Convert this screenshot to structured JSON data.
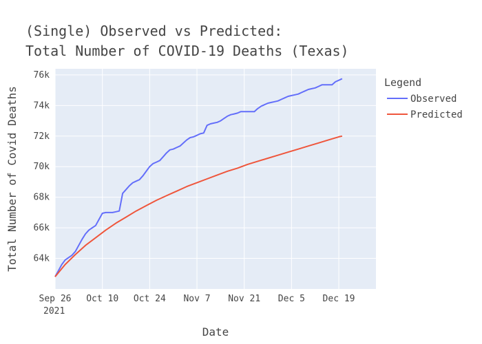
{
  "chart_data": {
    "type": "line",
    "title_lines": [
      "(Single) Observed vs Predicted:",
      "Total Number of COVID-19 Deaths (Texas)"
    ],
    "xlabel": "Date",
    "ylabel": "Total Number of Covid Deaths",
    "x_ticks": [
      {
        "date": "2021-09-26",
        "label": "Sep 26",
        "sublabel": "2021"
      },
      {
        "date": "2021-10-10",
        "label": "Oct 10",
        "sublabel": ""
      },
      {
        "date": "2021-10-24",
        "label": "Oct 24",
        "sublabel": ""
      },
      {
        "date": "2021-11-07",
        "label": "Nov 7",
        "sublabel": ""
      },
      {
        "date": "2021-11-21",
        "label": "Nov 21",
        "sublabel": ""
      },
      {
        "date": "2021-12-05",
        "label": "Dec 5",
        "sublabel": ""
      },
      {
        "date": "2021-12-19",
        "label": "Dec 19",
        "sublabel": ""
      }
    ],
    "y_ticks": [
      {
        "value": 64000,
        "label": "64k"
      },
      {
        "value": 66000,
        "label": "66k"
      },
      {
        "value": 68000,
        "label": "68k"
      },
      {
        "value": 70000,
        "label": "70k"
      },
      {
        "value": 72000,
        "label": "72k"
      },
      {
        "value": 74000,
        "label": "74k"
      },
      {
        "value": 76000,
        "label": "76k"
      }
    ],
    "xlim": [
      "2021-09-26",
      "2021-12-30"
    ],
    "ylim": [
      62000,
      76400
    ],
    "grid": true,
    "legend": {
      "title": "Legend",
      "placement": "right"
    },
    "series": [
      {
        "name": "Observed",
        "color": "#636efa",
        "points": [
          [
            "2021-09-26",
            62800
          ],
          [
            "2021-09-27",
            63200
          ],
          [
            "2021-09-28",
            63600
          ],
          [
            "2021-09-29",
            63900
          ],
          [
            "2021-09-30",
            64050
          ],
          [
            "2021-10-01",
            64200
          ],
          [
            "2021-10-02",
            64450
          ],
          [
            "2021-10-03",
            64850
          ],
          [
            "2021-10-04",
            65250
          ],
          [
            "2021-10-05",
            65600
          ],
          [
            "2021-10-06",
            65850
          ],
          [
            "2021-10-07",
            66000
          ],
          [
            "2021-10-08",
            66150
          ],
          [
            "2021-10-09",
            66550
          ],
          [
            "2021-10-10",
            66950
          ],
          [
            "2021-10-11",
            67000
          ],
          [
            "2021-10-12",
            67000
          ],
          [
            "2021-10-13",
            67000
          ],
          [
            "2021-10-14",
            67050
          ],
          [
            "2021-10-15",
            67100
          ],
          [
            "2021-10-16",
            68250
          ],
          [
            "2021-10-17",
            68500
          ],
          [
            "2021-10-18",
            68750
          ],
          [
            "2021-10-19",
            68950
          ],
          [
            "2021-10-20",
            69050
          ],
          [
            "2021-10-21",
            69150
          ],
          [
            "2021-10-22",
            69400
          ],
          [
            "2021-10-23",
            69700
          ],
          [
            "2021-10-24",
            70000
          ],
          [
            "2021-10-25",
            70200
          ],
          [
            "2021-10-26",
            70300
          ],
          [
            "2021-10-27",
            70400
          ],
          [
            "2021-10-28",
            70650
          ],
          [
            "2021-10-29",
            70900
          ],
          [
            "2021-10-30",
            71100
          ],
          [
            "2021-10-31",
            71150
          ],
          [
            "2021-11-01",
            71250
          ],
          [
            "2021-11-02",
            71350
          ],
          [
            "2021-11-03",
            71550
          ],
          [
            "2021-11-04",
            71750
          ],
          [
            "2021-11-05",
            71900
          ],
          [
            "2021-11-06",
            71950
          ],
          [
            "2021-11-07",
            72050
          ],
          [
            "2021-11-08",
            72150
          ],
          [
            "2021-11-09",
            72200
          ],
          [
            "2021-11-10",
            72700
          ],
          [
            "2021-11-11",
            72800
          ],
          [
            "2021-11-12",
            72850
          ],
          [
            "2021-11-13",
            72900
          ],
          [
            "2021-11-14",
            73000
          ],
          [
            "2021-11-15",
            73150
          ],
          [
            "2021-11-16",
            73300
          ],
          [
            "2021-11-17",
            73400
          ],
          [
            "2021-11-18",
            73450
          ],
          [
            "2021-11-19",
            73500
          ],
          [
            "2021-11-20",
            73600
          ],
          [
            "2021-11-21",
            73600
          ],
          [
            "2021-11-22",
            73600
          ],
          [
            "2021-11-23",
            73600
          ],
          [
            "2021-11-24",
            73600
          ],
          [
            "2021-11-25",
            73800
          ],
          [
            "2021-11-26",
            73950
          ],
          [
            "2021-11-27",
            74050
          ],
          [
            "2021-11-28",
            74150
          ],
          [
            "2021-11-29",
            74200
          ],
          [
            "2021-11-30",
            74250
          ],
          [
            "2021-12-01",
            74300
          ],
          [
            "2021-12-02",
            74400
          ],
          [
            "2021-12-03",
            74500
          ],
          [
            "2021-12-04",
            74600
          ],
          [
            "2021-12-05",
            74650
          ],
          [
            "2021-12-06",
            74700
          ],
          [
            "2021-12-07",
            74750
          ],
          [
            "2021-12-08",
            74850
          ],
          [
            "2021-12-09",
            74950
          ],
          [
            "2021-12-10",
            75050
          ],
          [
            "2021-12-11",
            75100
          ],
          [
            "2021-12-12",
            75150
          ],
          [
            "2021-12-13",
            75250
          ],
          [
            "2021-12-14",
            75350
          ],
          [
            "2021-12-15",
            75350
          ],
          [
            "2021-12-16",
            75350
          ],
          [
            "2021-12-17",
            75350
          ],
          [
            "2021-12-18",
            75550
          ],
          [
            "2021-12-19",
            75650
          ],
          [
            "2021-12-20",
            75750
          ]
        ]
      },
      {
        "name": "Predicted",
        "color": "#ef553b",
        "points": [
          [
            "2021-09-26",
            62800
          ],
          [
            "2021-09-29",
            63600
          ],
          [
            "2021-10-02",
            64250
          ],
          [
            "2021-10-05",
            64850
          ],
          [
            "2021-10-08",
            65350
          ],
          [
            "2021-10-11",
            65850
          ],
          [
            "2021-10-14",
            66300
          ],
          [
            "2021-10-17",
            66700
          ],
          [
            "2021-10-20",
            67100
          ],
          [
            "2021-10-23",
            67450
          ],
          [
            "2021-10-26",
            67800
          ],
          [
            "2021-10-29",
            68100
          ],
          [
            "2021-11-01",
            68400
          ],
          [
            "2021-11-04",
            68700
          ],
          [
            "2021-11-07",
            68950
          ],
          [
            "2021-11-10",
            69200
          ],
          [
            "2021-11-13",
            69450
          ],
          [
            "2021-11-16",
            69700
          ],
          [
            "2021-11-19",
            69900
          ],
          [
            "2021-11-22",
            70150
          ],
          [
            "2021-11-25",
            70350
          ],
          [
            "2021-11-28",
            70550
          ],
          [
            "2021-12-01",
            70750
          ],
          [
            "2021-12-04",
            70950
          ],
          [
            "2021-12-07",
            71150
          ],
          [
            "2021-12-10",
            71350
          ],
          [
            "2021-12-13",
            71550
          ],
          [
            "2021-12-16",
            71750
          ],
          [
            "2021-12-19",
            71950
          ],
          [
            "2021-12-20",
            72000
          ]
        ]
      }
    ]
  }
}
